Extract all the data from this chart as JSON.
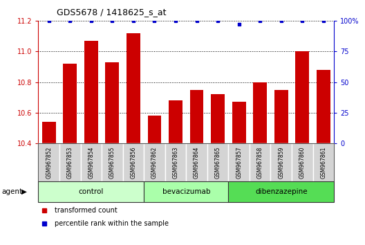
{
  "title": "GDS5678 / 1418625_s_at",
  "samples": [
    "GSM967852",
    "GSM967853",
    "GSM967854",
    "GSM967855",
    "GSM967856",
    "GSM967862",
    "GSM967863",
    "GSM967864",
    "GSM967865",
    "GSM967857",
    "GSM967858",
    "GSM967859",
    "GSM967860",
    "GSM967861"
  ],
  "bar_values": [
    10.54,
    10.92,
    11.07,
    10.93,
    11.12,
    10.58,
    10.68,
    10.75,
    10.72,
    10.67,
    10.8,
    10.75,
    11.0,
    10.88
  ],
  "percentile_values": [
    100,
    100,
    100,
    100,
    100,
    100,
    100,
    100,
    100,
    97,
    100,
    100,
    100,
    100
  ],
  "ylim_left": [
    10.4,
    11.2
  ],
  "ylim_right": [
    0,
    100
  ],
  "bar_color": "#cc0000",
  "dot_color": "#0000cc",
  "groups": [
    {
      "label": "control",
      "start": 0,
      "end": 5,
      "color": "#ccffcc"
    },
    {
      "label": "bevacizumab",
      "start": 5,
      "end": 9,
      "color": "#aaffaa"
    },
    {
      "label": "dibenzazepine",
      "start": 9,
      "end": 14,
      "color": "#55dd55"
    }
  ],
  "left_axis_color": "#cc0000",
  "right_axis_color": "#0000cc",
  "grid_color": "#000000",
  "sample_box_color": "#d4d4d4",
  "legend_items": [
    {
      "label": "transformed count",
      "color": "#cc0000"
    },
    {
      "label": "percentile rank within the sample",
      "color": "#0000cc"
    }
  ],
  "agent_label": "agent",
  "yticks_left": [
    10.4,
    10.6,
    10.8,
    11.0,
    11.2
  ],
  "yticks_right": [
    0,
    25,
    50,
    75,
    100
  ],
  "right_tick_labels": [
    "0",
    "25",
    "50",
    "75",
    "100%"
  ]
}
